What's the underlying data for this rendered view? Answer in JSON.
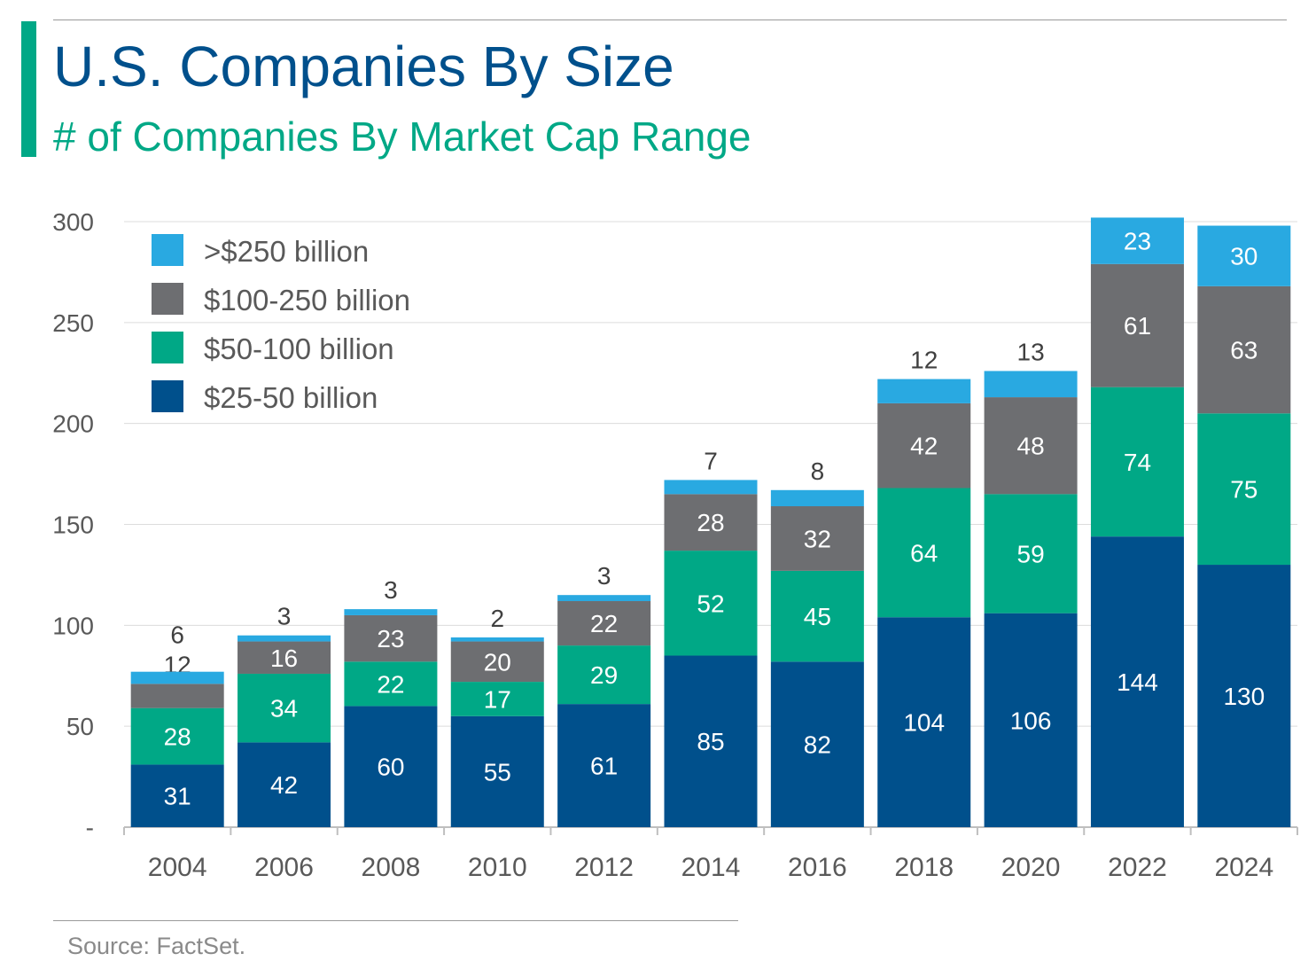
{
  "header": {
    "title": "U.S. Companies By Size",
    "subtitle": "# of Companies By Market Cap Range"
  },
  "footer": {
    "source": "Source: FactSet."
  },
  "chart_data": {
    "type": "bar",
    "stacked": true,
    "title": "U.S. Companies By Size",
    "subtitle": "# of Companies By Market Cap Range",
    "xlabel": "",
    "ylabel": "",
    "ylim": [
      0,
      300
    ],
    "yticks": [
      0,
      50,
      100,
      150,
      200,
      250,
      300
    ],
    "ytick_labels": [
      "-",
      "50",
      "100",
      "150",
      "200",
      "250",
      "300"
    ],
    "grid": true,
    "legend_position": "top-left",
    "categories": [
      "2004",
      "2006",
      "2008",
      "2010",
      "2012",
      "2014",
      "2016",
      "2018",
      "2020",
      "2022",
      "2024"
    ],
    "series": [
      {
        "name": "$25-50 billion",
        "color": "#00508c",
        "values": [
          31,
          42,
          60,
          55,
          61,
          85,
          82,
          104,
          106,
          144,
          130
        ]
      },
      {
        "name": "$50-100 billion",
        "color": "#00a886",
        "values": [
          28,
          34,
          22,
          17,
          29,
          52,
          45,
          64,
          59,
          74,
          75
        ]
      },
      {
        "name": "$100-250 billion",
        "color": "#6d6e71",
        "values": [
          12,
          16,
          23,
          20,
          22,
          28,
          32,
          42,
          48,
          61,
          63
        ]
      },
      {
        "name": ">$250 billion",
        "color": "#29a9e1",
        "values": [
          6,
          3,
          3,
          2,
          3,
          7,
          8,
          12,
          13,
          23,
          30
        ]
      }
    ]
  }
}
